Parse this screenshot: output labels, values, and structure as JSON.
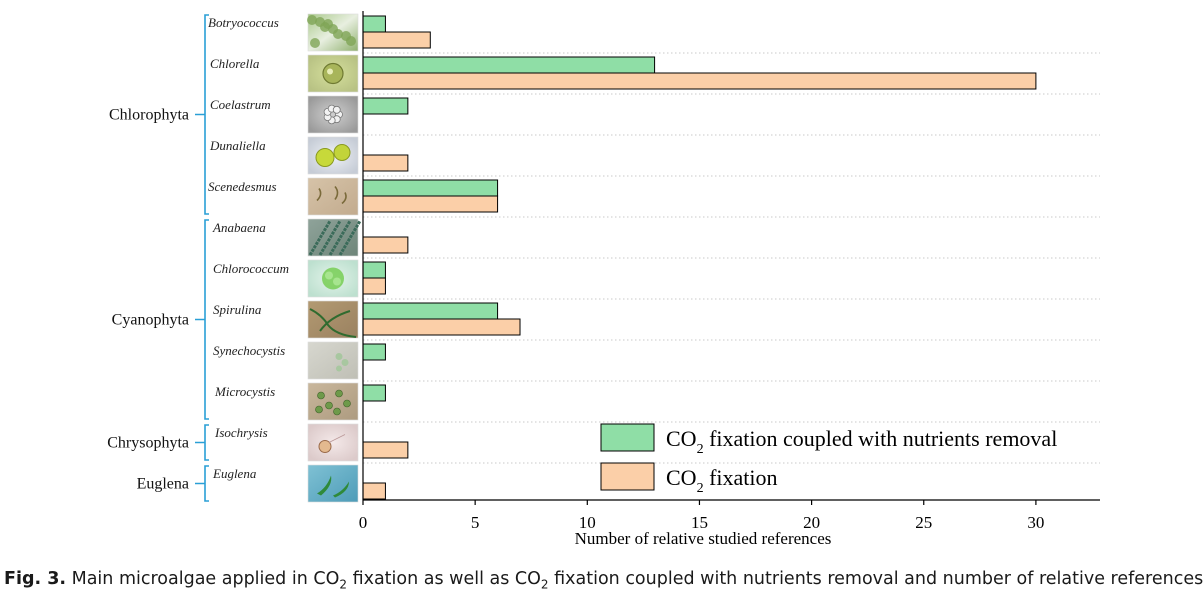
{
  "chart_data": {
    "type": "bar",
    "orientation": "horizontal",
    "xlabel": "Number of relative studied references",
    "xlim": [
      0,
      33
    ],
    "xticks": [
      0,
      5,
      10,
      15,
      20,
      25,
      30
    ],
    "grid": "dotted horizontal separators",
    "legend_placement": "bottom-right",
    "colors": {
      "coupled": "#8fdea6",
      "fixation": "#fbcfa8",
      "bracket": "#2a9fd6"
    },
    "groups": [
      {
        "name": "Chlorophyta",
        "start": 0,
        "end": 4
      },
      {
        "name": "Cyanophyta",
        "start": 5,
        "end": 9
      },
      {
        "name": "Chrysophyta",
        "start": 10,
        "end": 10
      },
      {
        "name": "Euglena",
        "start": 11,
        "end": 11
      }
    ],
    "categories": [
      "Botryococcus",
      "Chlorella",
      "Coelastrum",
      "Dunaliella",
      "Scenedesmus",
      "Anabaena",
      "Chlorococcum",
      "Spirulina",
      "Synechocystis",
      "Microcystis",
      "Isochrysis",
      "Euglena"
    ],
    "series": [
      {
        "name": "CO₂ fixation coupled with nutrients removal",
        "name_main": "CO",
        "name_sub": "2",
        "name_rest": " fixation coupled with nutrients removal",
        "values": [
          1,
          13,
          2,
          0,
          6,
          0,
          1,
          6,
          1,
          1,
          0,
          0
        ]
      },
      {
        "name": "CO₂ fixation",
        "name_main": "CO",
        "name_sub": "2",
        "name_rest": " fixation",
        "values": [
          3,
          30,
          0,
          2,
          6,
          2,
          1,
          7,
          0,
          0,
          2,
          1
        ]
      }
    ],
    "thumbnail_icons": [
      "botryococcus-photo",
      "chlorella-photo",
      "coelastrum-photo",
      "dunaliella-photo",
      "scenedesmus-photo",
      "anabaena-photo",
      "chlorococcum-photo",
      "spirulina-photo",
      "synechocystis-photo",
      "microcystis-photo",
      "isochrysis-photo",
      "euglena-photo"
    ]
  },
  "caption": {
    "label": "Fig. 3.",
    "text_1": " Main microalgae applied in CO",
    "sub_1": "2",
    "text_2": " fixation as well as CO",
    "sub_2": "2",
    "text_3": " fixation coupled with nutrients removal and number of relative references."
  }
}
